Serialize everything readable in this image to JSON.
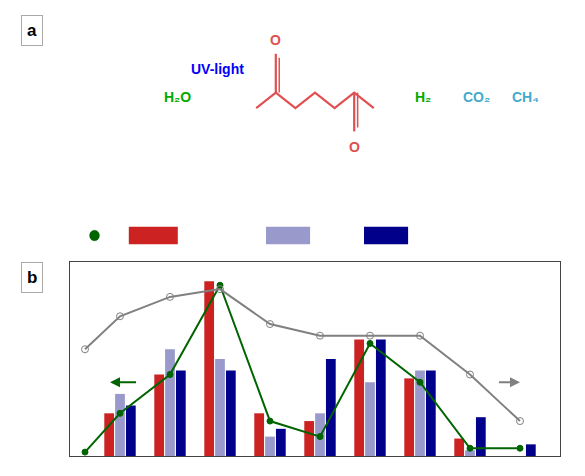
{
  "chart_data": {
    "type": "bar",
    "xlim": [
      0,
      9.8
    ],
    "ylim": [
      0,
      100
    ],
    "tick_labels": false,
    "grid": false,
    "series": [
      {
        "type": "bar",
        "color": "#cc2222",
        "x": [
          1,
          2,
          3,
          4,
          5,
          6,
          7,
          8,
          9
        ],
        "values": [
          22,
          42,
          90,
          22,
          18,
          60,
          40,
          9,
          0
        ]
      },
      {
        "type": "bar",
        "color": "#9999cc",
        "x": [
          1,
          2,
          3,
          4,
          5,
          6,
          7,
          8,
          9
        ],
        "values": [
          32,
          55,
          50,
          10,
          22,
          38,
          44,
          3,
          0
        ]
      },
      {
        "type": "bar",
        "color": "#00008b",
        "x": [
          1,
          2,
          3,
          4,
          5,
          6,
          7,
          8,
          9
        ],
        "values": [
          26,
          44,
          44,
          14,
          50,
          60,
          44,
          20,
          6
        ]
      },
      {
        "type": "line",
        "color": "#006400",
        "marker": "circle",
        "x": [
          0.3,
          1,
          2,
          3,
          4,
          5,
          6,
          7,
          8,
          9
        ],
        "values": [
          2,
          22,
          42,
          88,
          18,
          10,
          58,
          38,
          4,
          4
        ]
      },
      {
        "type": "line",
        "color": "#808080",
        "marker": "circle-open",
        "x": [
          0.3,
          1,
          2,
          3,
          4,
          5,
          6,
          7,
          8,
          9
        ],
        "values": [
          55,
          72,
          82,
          86,
          68,
          62,
          62,
          62,
          42,
          18
        ]
      }
    ],
    "arrows": [
      {
        "x": [
          1.35,
          0.8
        ],
        "y": [
          38,
          38
        ],
        "color": "#006400"
      },
      {
        "x": [
          8.55,
          9.0
        ],
        "y": [
          38,
          38
        ],
        "color": "#808080"
      }
    ],
    "annotations": [
      {
        "text": "a",
        "color": "#000000"
      },
      {
        "text": "b",
        "color": "#000000"
      },
      {
        "text": "H₂O",
        "color": "#00aa00"
      },
      {
        "text": "UV-light",
        "color": "#0000ff"
      },
      {
        "text": "O",
        "color": "#e05050"
      },
      {
        "text": "O",
        "color": "#e05050"
      },
      {
        "text": "H₂",
        "color": "#00aa00"
      },
      {
        "text": "CO₂",
        "color": "#44aacc"
      },
      {
        "text": "CH₄",
        "color": "#44aacc"
      }
    ]
  }
}
